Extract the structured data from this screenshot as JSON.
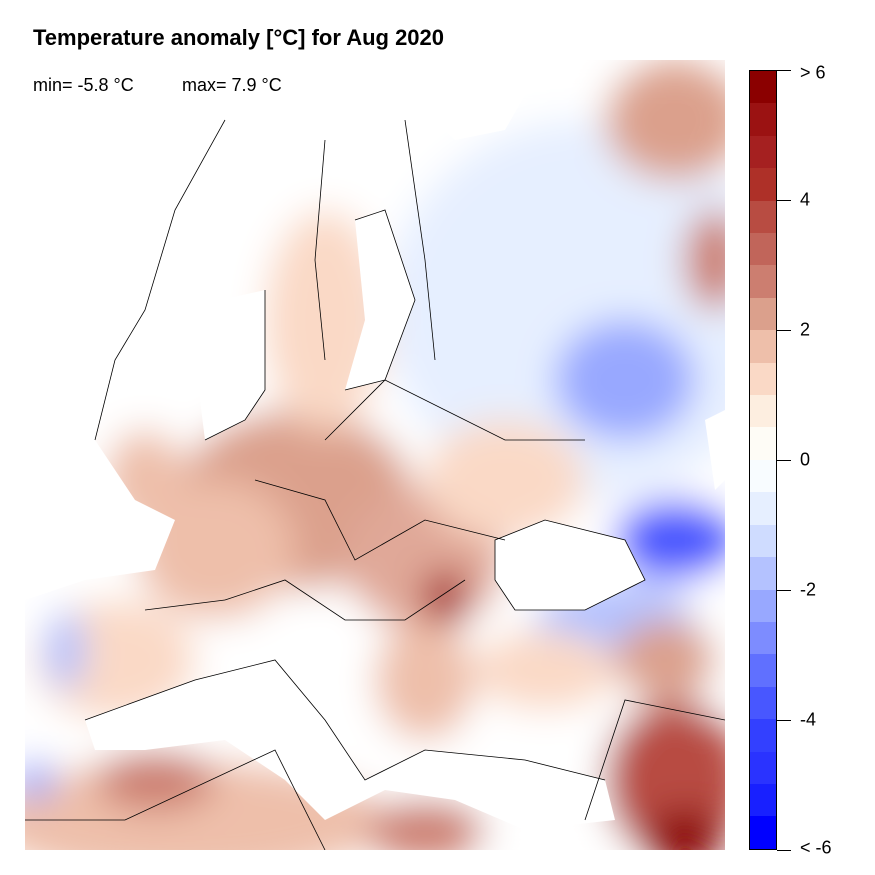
{
  "title": "Temperature anomaly [°C] for Aug 2020",
  "stats": {
    "min": "min= -5.8 °C",
    "max": "max= 7.9 °C"
  },
  "legend": {
    "ticks": [
      {
        "value": 6,
        "label": "> 6"
      },
      {
        "value": 4,
        "label": "4"
      },
      {
        "value": 2,
        "label": "2"
      },
      {
        "value": 0,
        "label": "0"
      },
      {
        "value": -2,
        "label": "-2"
      },
      {
        "value": -4,
        "label": "-4"
      },
      {
        "value": -6,
        "label": "< -6"
      }
    ],
    "range": [
      -6,
      6
    ],
    "step": 0.5,
    "colors": [
      "#8b0000",
      "#9b1212",
      "#a52020",
      "#ae3028",
      "#b84c42",
      "#c1655a",
      "#cc7e70",
      "#dba08c",
      "#eebfaa",
      "#fad9c6",
      "#fdeee0",
      "#fefcf6",
      "#f8fcff",
      "#e6efff",
      "#cfdcff",
      "#b4c2ff",
      "#98a8ff",
      "#7d8cff",
      "#6070ff",
      "#4857ff",
      "#3340ff",
      "#2a33ff",
      "#1820ff",
      "#0000ff"
    ]
  },
  "map": {
    "region": "Europe",
    "sea_color": "#ffffff",
    "border_color": "#000000"
  }
}
